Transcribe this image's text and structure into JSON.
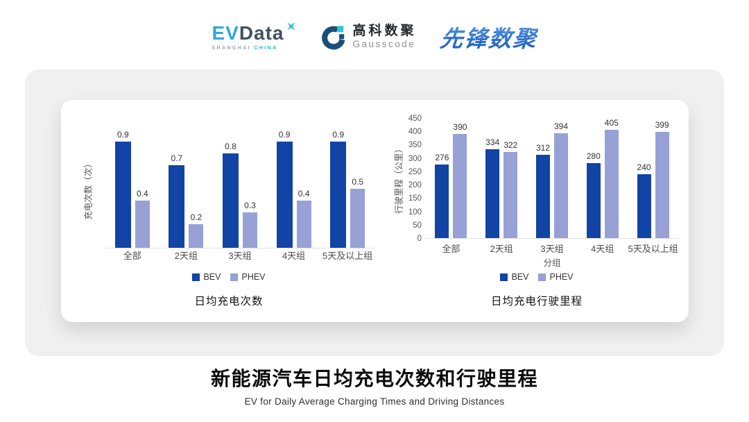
{
  "header": {
    "evdata": {
      "ev": "EV",
      "data": "Data",
      "sub1": "SHANGHAI",
      "sub2": "CHINA"
    },
    "gausscode": {
      "cn": "高科数聚",
      "en": "Gausscode"
    },
    "pioneer": {
      "text": "先锋数聚"
    }
  },
  "colors": {
    "bev": "#1244A6",
    "phev": "#97A1D6",
    "panel_bg": "#f0f0f0",
    "axis_line": "#e2e2e2",
    "evdata_blue": "#2EA7DC",
    "evdata_dark": "#44505E",
    "gauss_teal": "#17507A",
    "gauss_cyan": "#35C4D7",
    "pioneer_blue": "#2E6FD0"
  },
  "chart_data": [
    {
      "type": "bar",
      "title": "日均充电次数",
      "ylabel": "充电次数（次）",
      "xlabel": "",
      "categories": [
        "全部",
        "2天组",
        "3天组",
        "4天组",
        "5天及以上组"
      ],
      "series": [
        {
          "name": "BEV",
          "color": "#1244A6",
          "values": [
            0.9,
            0.7,
            0.8,
            0.9,
            0.9
          ]
        },
        {
          "name": "PHEV",
          "color": "#97A1D6",
          "values": [
            0.4,
            0.2,
            0.3,
            0.4,
            0.5
          ]
        }
      ],
      "ylim": [
        0,
        1.0
      ],
      "y_axis_labels_visible": false,
      "grid": false,
      "data_labels": true,
      "legend_position": "bottom"
    },
    {
      "type": "bar",
      "title": "日均充电行驶里程",
      "ylabel": "行驶里程（公里）",
      "xlabel": "分组",
      "categories": [
        "全部",
        "2天组",
        "3天组",
        "4天组",
        "5天及以上组"
      ],
      "series": [
        {
          "name": "BEV",
          "color": "#1244A6",
          "values": [
            276,
            334,
            312,
            280,
            240
          ]
        },
        {
          "name": "PHEV",
          "color": "#97A1D6",
          "values": [
            390,
            322,
            394,
            405,
            399
          ]
        }
      ],
      "ylim": [
        0,
        450
      ],
      "ytick_step": 50,
      "y_axis_labels_visible": true,
      "grid": false,
      "data_labels": true,
      "legend_position": "bottom"
    }
  ],
  "footer": {
    "title": "新能源汽车日均充电次数和行驶里程",
    "subtitle": "EV for Daily Average Charging Times and Driving Distances"
  }
}
